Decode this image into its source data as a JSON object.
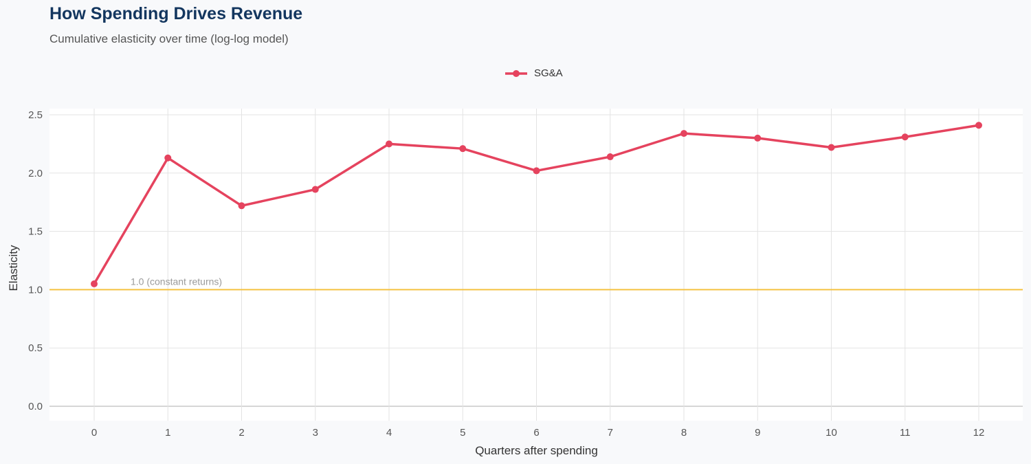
{
  "title": "How Spending Drives Revenue",
  "subtitle": "Cumulative elasticity over time (log-log model)",
  "chart_data": {
    "type": "line",
    "xlabel": "Quarters after spending",
    "ylabel": "Elasticity",
    "x": [
      0,
      1,
      2,
      3,
      4,
      5,
      6,
      7,
      8,
      9,
      10,
      11,
      12
    ],
    "series": [
      {
        "name": "SG&A",
        "color": "#e5435e",
        "values": [
          1.05,
          2.13,
          1.72,
          1.86,
          2.25,
          2.21,
          2.02,
          2.14,
          2.34,
          2.3,
          2.22,
          2.31,
          2.41
        ]
      }
    ],
    "ylim": [
      0,
      2.5
    ],
    "yticks": [
      "0.0",
      "0.5",
      "1.0",
      "1.5",
      "2.0",
      "2.5"
    ],
    "xticks": [
      "0",
      "1",
      "2",
      "3",
      "4",
      "5",
      "6",
      "7",
      "8",
      "9",
      "10",
      "11",
      "12"
    ],
    "reference_line": {
      "value": 1.0,
      "label": "1.0 (constant returns)",
      "color": "#f5c242"
    },
    "grid": true,
    "legend_position": "top"
  }
}
